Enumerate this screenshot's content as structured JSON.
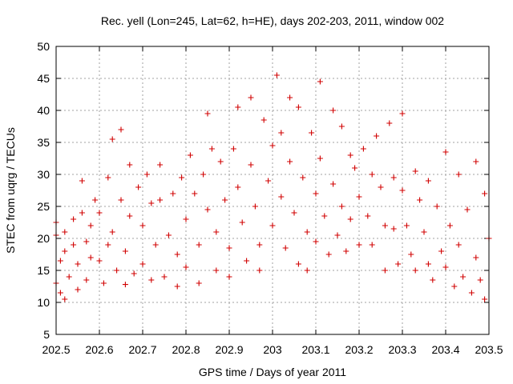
{
  "chart_data": {
    "type": "scatter",
    "title": "Rec. yell (Lon=245, Lat=62, h=HE), days 202-203, 2011, window 002",
    "xlabel": "GPS time / Days of year 2011",
    "ylabel": "STEC from uqrg / TECUs",
    "xlim": [
      202.5,
      203.5
    ],
    "ylim": [
      5,
      50
    ],
    "x_ticks": [
      "202.5",
      "202.6",
      "202.7",
      "202.8",
      "202.9",
      "203",
      "203.1",
      "203.2",
      "203.3",
      "203.4",
      "203.5"
    ],
    "y_ticks": [
      "5",
      "10",
      "15",
      "20",
      "25",
      "30",
      "35",
      "40",
      "45",
      "50"
    ],
    "grid": true,
    "marker": "plus",
    "marker_color": "#d00000",
    "series": [
      {
        "points": [
          [
            202.5,
            22.5
          ],
          [
            202.5,
            20.5
          ],
          [
            202.5,
            13.0
          ],
          [
            202.51,
            11.5
          ],
          [
            202.51,
            16.5
          ],
          [
            202.52,
            21.0
          ],
          [
            202.52,
            10.5
          ],
          [
            202.52,
            18.0
          ],
          [
            202.53,
            14.0
          ],
          [
            202.54,
            23.0
          ],
          [
            202.54,
            19.0
          ],
          [
            202.55,
            12.0
          ],
          [
            202.55,
            16.0
          ],
          [
            202.56,
            29.0
          ],
          [
            202.56,
            24.0
          ],
          [
            202.57,
            19.5
          ],
          [
            202.57,
            13.5
          ],
          [
            202.58,
            17.0
          ],
          [
            202.58,
            22.0
          ],
          [
            202.59,
            26.0
          ],
          [
            202.6,
            24.0
          ],
          [
            202.6,
            16.5
          ],
          [
            202.61,
            13.0
          ],
          [
            202.62,
            29.5
          ],
          [
            202.62,
            19.0
          ],
          [
            202.63,
            35.5
          ],
          [
            202.63,
            21.0
          ],
          [
            202.64,
            15.0
          ],
          [
            202.65,
            37.0
          ],
          [
            202.65,
            26.0
          ],
          [
            202.66,
            18.0
          ],
          [
            202.66,
            12.8
          ],
          [
            202.67,
            31.5
          ],
          [
            202.67,
            23.5
          ],
          [
            202.68,
            14.5
          ],
          [
            202.69,
            28.0
          ],
          [
            202.7,
            22.0
          ],
          [
            202.7,
            16.0
          ],
          [
            202.71,
            30.0
          ],
          [
            202.72,
            25.5
          ],
          [
            202.72,
            13.5
          ],
          [
            202.73,
            19.0
          ],
          [
            202.74,
            31.5
          ],
          [
            202.74,
            26.0
          ],
          [
            202.75,
            14.0
          ],
          [
            202.76,
            20.5
          ],
          [
            202.77,
            27.0
          ],
          [
            202.78,
            17.5
          ],
          [
            202.78,
            12.5
          ],
          [
            202.79,
            29.5
          ],
          [
            202.8,
            23.0
          ],
          [
            202.8,
            15.5
          ],
          [
            202.81,
            33.0
          ],
          [
            202.82,
            27.0
          ],
          [
            202.83,
            19.0
          ],
          [
            202.83,
            13.0
          ],
          [
            202.84,
            30.0
          ],
          [
            202.85,
            39.5
          ],
          [
            202.85,
            24.5
          ],
          [
            202.86,
            34.0
          ],
          [
            202.87,
            21.0
          ],
          [
            202.87,
            15.0
          ],
          [
            202.88,
            32.0
          ],
          [
            202.89,
            26.0
          ],
          [
            202.9,
            18.5
          ],
          [
            202.9,
            14.0
          ],
          [
            202.91,
            34.0
          ],
          [
            202.92,
            40.5
          ],
          [
            202.92,
            28.0
          ],
          [
            202.93,
            22.5
          ],
          [
            202.94,
            16.5
          ],
          [
            202.95,
            42.0
          ],
          [
            202.95,
            31.5
          ],
          [
            202.96,
            25.0
          ],
          [
            202.97,
            19.0
          ],
          [
            202.97,
            15.0
          ],
          [
            202.98,
            38.5
          ],
          [
            202.99,
            29.0
          ],
          [
            203.0,
            34.5
          ],
          [
            203.0,
            22.0
          ],
          [
            203.01,
            45.5
          ],
          [
            203.02,
            36.5
          ],
          [
            203.02,
            26.5
          ],
          [
            203.03,
            18.5
          ],
          [
            203.04,
            42.0
          ],
          [
            203.04,
            32.0
          ],
          [
            203.05,
            24.0
          ],
          [
            203.06,
            16.0
          ],
          [
            203.06,
            40.5
          ],
          [
            203.07,
            29.5
          ],
          [
            203.08,
            21.0
          ],
          [
            203.08,
            15.0
          ],
          [
            203.09,
            36.5
          ],
          [
            203.1,
            27.0
          ],
          [
            203.1,
            19.5
          ],
          [
            203.11,
            44.5
          ],
          [
            203.11,
            32.5
          ],
          [
            203.12,
            23.5
          ],
          [
            203.13,
            17.5
          ],
          [
            203.14,
            40.0
          ],
          [
            203.14,
            28.5
          ],
          [
            203.15,
            20.5
          ],
          [
            203.16,
            37.5
          ],
          [
            203.16,
            25.0
          ],
          [
            203.17,
            18.0
          ],
          [
            203.18,
            33.0
          ],
          [
            203.18,
            23.0
          ],
          [
            203.19,
            31.0
          ],
          [
            203.2,
            26.5
          ],
          [
            203.2,
            19.0
          ],
          [
            203.21,
            34.0
          ],
          [
            203.22,
            23.5
          ],
          [
            203.23,
            30.0
          ],
          [
            203.23,
            19.0
          ],
          [
            203.24,
            36.0
          ],
          [
            203.25,
            28.0
          ],
          [
            203.26,
            22.0
          ],
          [
            203.26,
            15.0
          ],
          [
            203.27,
            38.0
          ],
          [
            203.28,
            29.5
          ],
          [
            203.28,
            21.5
          ],
          [
            203.29,
            16.0
          ],
          [
            203.3,
            39.5
          ],
          [
            203.3,
            27.5
          ],
          [
            203.31,
            22.0
          ],
          [
            203.32,
            17.5
          ],
          [
            203.33,
            30.5
          ],
          [
            203.33,
            15.0
          ],
          [
            203.34,
            26.0
          ],
          [
            203.35,
            21.0
          ],
          [
            203.36,
            16.0
          ],
          [
            203.36,
            29.0
          ],
          [
            203.37,
            13.5
          ],
          [
            203.38,
            25.0
          ],
          [
            203.39,
            18.0
          ],
          [
            203.4,
            15.5
          ],
          [
            203.4,
            33.5
          ],
          [
            203.41,
            22.0
          ],
          [
            203.42,
            12.5
          ],
          [
            203.43,
            30.0
          ],
          [
            203.43,
            19.0
          ],
          [
            203.44,
            14.0
          ],
          [
            203.45,
            24.5
          ],
          [
            203.46,
            11.5
          ],
          [
            203.47,
            32.0
          ],
          [
            203.47,
            17.0
          ],
          [
            203.48,
            13.5
          ],
          [
            203.49,
            27.0
          ],
          [
            203.49,
            10.5
          ],
          [
            203.5,
            20.0
          ]
        ]
      }
    ]
  }
}
